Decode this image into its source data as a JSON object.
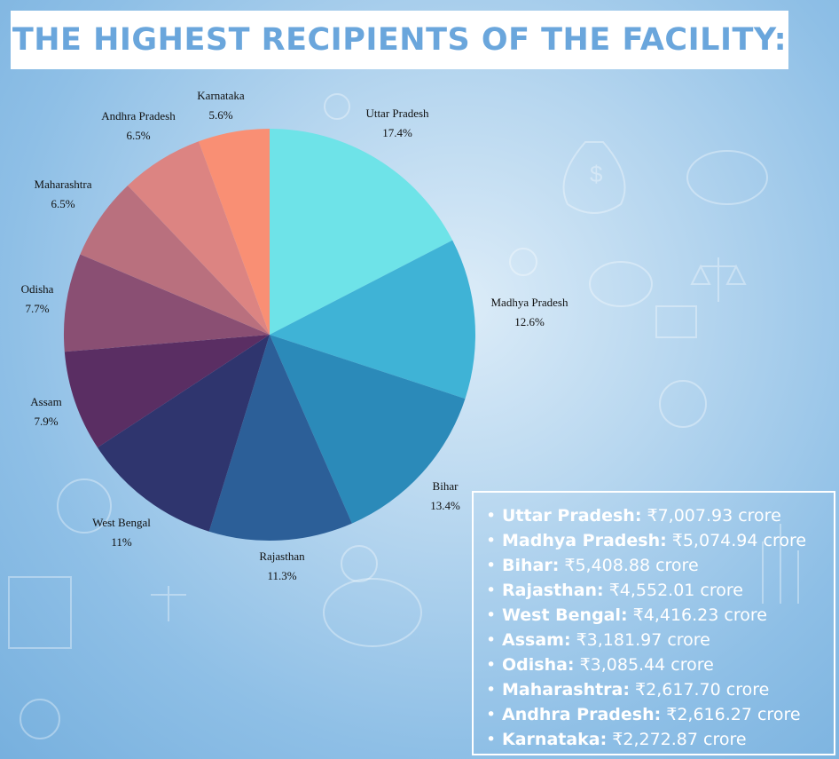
{
  "title": "THE HIGHEST RECIPIENTS OF THE FACILITY:",
  "colors": {
    "title": "#6aa6dc",
    "background": "#8ebfe6",
    "legend_text": "#ffffff"
  },
  "chart_data": {
    "type": "pie",
    "title": "",
    "slices": [
      {
        "label": "Uttar Pradesh",
        "pct_label": "17.4%",
        "value": 17.4,
        "color": "#6ee3e8"
      },
      {
        "label": "Madhya Pradesh",
        "pct_label": "12.6%",
        "value": 12.6,
        "color": "#3fb3d6"
      },
      {
        "label": "Bihar",
        "pct_label": "13.4%",
        "value": 13.4,
        "color": "#2b8ab9"
      },
      {
        "label": "Rajasthan",
        "pct_label": "11.3%",
        "value": 11.3,
        "color": "#2c5f98"
      },
      {
        "label": "West Bengal",
        "pct_label": "11%",
        "value": 11,
        "color": "#2f356e"
      },
      {
        "label": "Assam",
        "pct_label": "7.9%",
        "value": 7.9,
        "color": "#5a2e63"
      },
      {
        "label": "Odisha",
        "pct_label": "7.7%",
        "value": 7.7,
        "color": "#8a4f73"
      },
      {
        "label": "Maharashtra",
        "pct_label": "6.5%",
        "value": 6.5,
        "color": "#b9707e"
      },
      {
        "label": "Andhra Pradesh",
        "pct_label": "6.5%",
        "value": 6.5,
        "color": "#dc8482"
      },
      {
        "label": "Karnataka",
        "pct_label": "5.6%",
        "value": 5.6,
        "color": "#f98f74"
      }
    ]
  },
  "legend_items": [
    {
      "state": "Uttar Pradesh:",
      "amount": " ₹7,007.93 crore"
    },
    {
      "state": "Madhya Pradesh:",
      "amount": " ₹5,074.94 crore"
    },
    {
      "state": "Bihar:",
      "amount": " ₹5,408.88 crore"
    },
    {
      "state": "Rajasthan:",
      "amount": " ₹4,552.01 crore"
    },
    {
      "state": "West Bengal:",
      "amount": " ₹4,416.23 crore"
    },
    {
      "state": "Assam:",
      "amount": " ₹3,181.97 crore"
    },
    {
      "state": "Odisha:",
      "amount": " ₹3,085.44 crore"
    },
    {
      "state": "Maharashtra:",
      "amount": " ₹2,617.70 crore"
    },
    {
      "state": "Andhra Pradesh:",
      "amount": " ₹2,616.27 crore"
    },
    {
      "state": "Karnataka:",
      "amount": " ₹2,272.87 crore"
    }
  ]
}
